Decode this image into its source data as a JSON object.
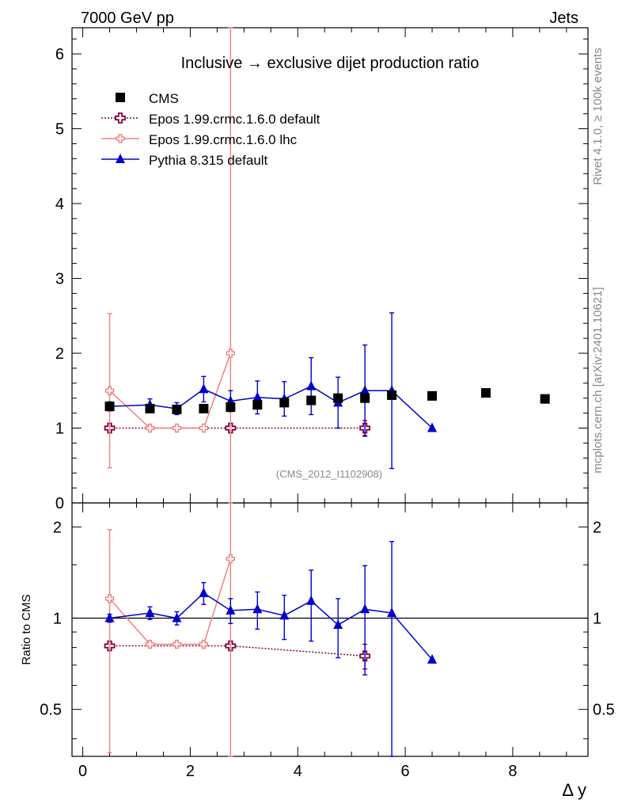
{
  "header": {
    "left": "7000 GeV pp",
    "right": "Jets",
    "side_top": "Rivet 4.1.0, ≥ 100k events",
    "side_bottom": "mcplots.cern.ch [arXiv:2401.10621]",
    "analysis_id": "(CMS_2012_I1102908)"
  },
  "chart_data": {
    "type": "scatter",
    "title": "Inclusive → exclusive dijet production ratio",
    "xlabel": "Δ y",
    "ylabel_ratio": "Ratio to CMS",
    "xlim": [
      -0.2,
      9.4
    ],
    "ylim_main": [
      0,
      6.35
    ],
    "ylim_ratio": [
      0.35,
      2.4
    ],
    "ratio_yscale": "log",
    "x_ticks": [
      0,
      2,
      4,
      6,
      8
    ],
    "x_tick_labels": [
      "0",
      "2",
      "4",
      "6",
      "8"
    ],
    "main_y_ticks": [
      0,
      1,
      2,
      3,
      4,
      5,
      6
    ],
    "main_y_tick_labels": [
      "0",
      "1",
      "2",
      "3",
      "4",
      "5",
      "6"
    ],
    "ratio_y_ticks": [
      0.5,
      1,
      2
    ],
    "ratio_y_tick_labels": [
      "0.5",
      "1",
      "2"
    ],
    "legend_position": "top-left",
    "series": [
      {
        "name": "CMS",
        "role": "data",
        "color": "#000000",
        "marker": "square",
        "x": [
          0.5,
          1.25,
          1.75,
          2.25,
          2.75,
          3.25,
          3.75,
          4.25,
          4.75,
          5.25,
          5.75,
          6.5,
          7.5,
          8.6
        ],
        "y": [
          1.29,
          1.26,
          1.25,
          1.26,
          1.28,
          1.31,
          1.34,
          1.37,
          1.4,
          1.4,
          1.44,
          1.43,
          1.47,
          1.39
        ]
      },
      {
        "name": "Epos 1.99.crmc.1.6.0 default",
        "color": "#800040",
        "marker": "open-cross",
        "line": "dotted",
        "x": [
          0.5,
          2.75,
          5.25
        ],
        "y": [
          1.0,
          1.0,
          1.0
        ],
        "yerr": [
          0.04,
          0.04,
          0.1
        ],
        "ratio": [
          0.81,
          0.81,
          0.75
        ],
        "ratio_err": [
          0.02,
          0.02,
          0.07
        ]
      },
      {
        "name": "Epos 1.99.crmc.1.6.0 lhc",
        "color": "#f08080",
        "marker": "cross",
        "line": "solid",
        "x": [
          0.5,
          1.25,
          1.75,
          2.25,
          2.75
        ],
        "y": [
          1.5,
          1.0,
          1.0,
          1.0,
          2.0
        ],
        "yerr": [
          1.03,
          0.02,
          0.02,
          0.02,
          4.5
        ],
        "ratio": [
          1.16,
          0.82,
          0.82,
          0.82,
          1.57
        ],
        "ratio_err": [
          0.8,
          0.015,
          0.015,
          0.015,
          3.0
        ]
      },
      {
        "name": "Pythia 8.315 default",
        "color": "#0000cc",
        "marker": "triangle",
        "line": "solid",
        "x": [
          0.5,
          1.25,
          1.75,
          2.25,
          2.75,
          3.25,
          3.75,
          4.25,
          4.75,
          5.25,
          5.75,
          6.5
        ],
        "y": [
          1.29,
          1.31,
          1.26,
          1.52,
          1.36,
          1.41,
          1.39,
          1.56,
          1.34,
          1.5,
          1.5,
          1.0
        ],
        "yerr": [
          0.06,
          0.08,
          0.08,
          0.17,
          0.14,
          0.22,
          0.23,
          0.38,
          0.34,
          0.61,
          1.04,
          0.0
        ],
        "ratio": [
          1.0,
          1.04,
          1.0,
          1.21,
          1.06,
          1.07,
          1.02,
          1.14,
          0.95,
          1.07,
          1.04,
          0.73
        ],
        "ratio_err": [
          0.03,
          0.05,
          0.05,
          0.1,
          0.1,
          0.15,
          0.17,
          0.3,
          0.21,
          0.42,
          0.75,
          0.0
        ]
      }
    ]
  }
}
